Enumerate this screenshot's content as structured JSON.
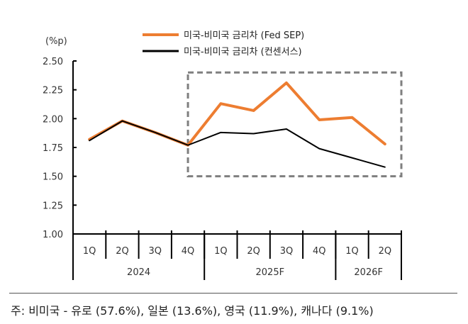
{
  "chart_data": {
    "type": "line",
    "title": "",
    "unit_label": "(%p)",
    "ylabel": "(%p)",
    "xlabel": "",
    "ylim": [
      1.0,
      2.5
    ],
    "yticks": [
      1.0,
      1.25,
      1.5,
      1.75,
      2.0,
      2.25,
      2.5
    ],
    "ytick_labels": [
      "1.00",
      "1.25",
      "1.50",
      "1.75",
      "2.00",
      "2.25",
      "2.50"
    ],
    "categories": [
      "1Q",
      "2Q",
      "3Q",
      "4Q",
      "1Q",
      "2Q",
      "3Q",
      "4Q",
      "1Q",
      "2Q"
    ],
    "groups": [
      {
        "label": "2024",
        "count": 4
      },
      {
        "label": "2025F",
        "count": 4
      },
      {
        "label": "2026F",
        "count": 2
      }
    ],
    "series": [
      {
        "name": "미국-비미국 금리차 (Fed SEP)",
        "color": "#ED7D31",
        "values": [
          1.82,
          1.98,
          1.88,
          1.77,
          2.13,
          2.07,
          2.31,
          1.99,
          2.01,
          1.78
        ]
      },
      {
        "name": "미국-비미국 금리차 (컨센서스)",
        "color": "#000000",
        "values": [
          1.81,
          1.98,
          1.88,
          1.77,
          1.88,
          1.87,
          1.91,
          1.74,
          1.66,
          1.58
        ]
      }
    ],
    "annotations": [
      {
        "type": "dashed-box",
        "from_category_index": 3,
        "to_category_index": 9,
        "y_range": [
          1.5,
          2.4
        ],
        "color": "#7F7F7F"
      }
    ],
    "legend": "top-center",
    "grid": false
  },
  "footnote": "주: 비미국 - 유로 (57.6%), 일본 (13.6%), 영국 (11.9%), 캐나다 (9.1%)"
}
